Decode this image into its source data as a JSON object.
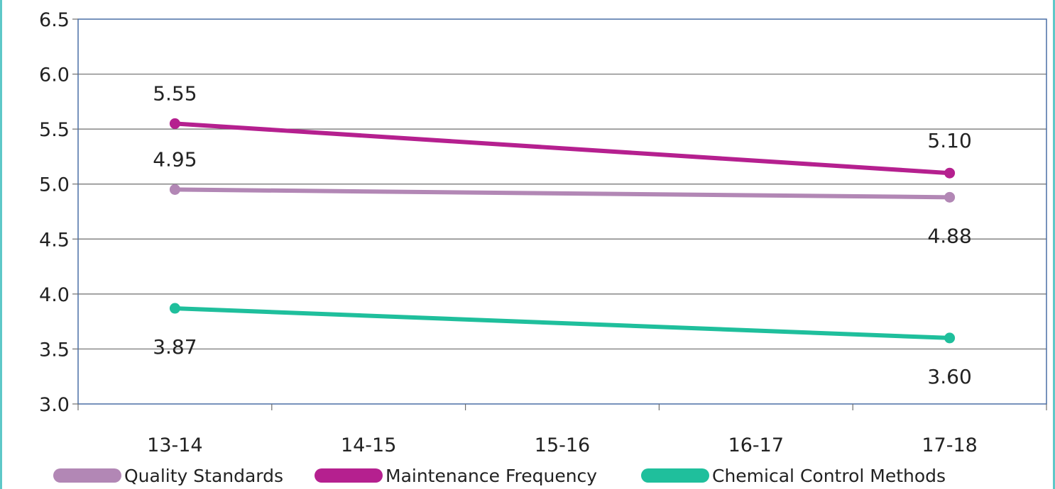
{
  "chart_data": {
    "type": "line",
    "categories": [
      "13-14",
      "14-15",
      "15-16",
      "16-17",
      "17-18"
    ],
    "ylim": [
      3.0,
      6.5
    ],
    "yticks": [
      "3.0",
      "3.5",
      "4.0",
      "4.5",
      "5.0",
      "5.5",
      "6.0",
      "6.5"
    ],
    "grid": true,
    "legend_position": "bottom",
    "series": [
      {
        "name": "Quality Standards",
        "color": "#b287b5",
        "points": [
          {
            "x": "13-14",
            "y": 4.95,
            "label": "4.95"
          },
          {
            "x": "17-18",
            "y": 4.88,
            "label": "4.88"
          }
        ]
      },
      {
        "name": "Maintenance Frequency",
        "color": "#b5208f",
        "points": [
          {
            "x": "13-14",
            "y": 5.55,
            "label": "5.55"
          },
          {
            "x": "17-18",
            "y": 5.1,
            "label": "5.10"
          }
        ]
      },
      {
        "name": "Chemical Control Methods",
        "color": "#1fbf9c",
        "points": [
          {
            "x": "13-14",
            "y": 3.87,
            "label": "3.87"
          },
          {
            "x": "17-18",
            "y": 3.6,
            "label": "3.60"
          }
        ]
      }
    ]
  }
}
